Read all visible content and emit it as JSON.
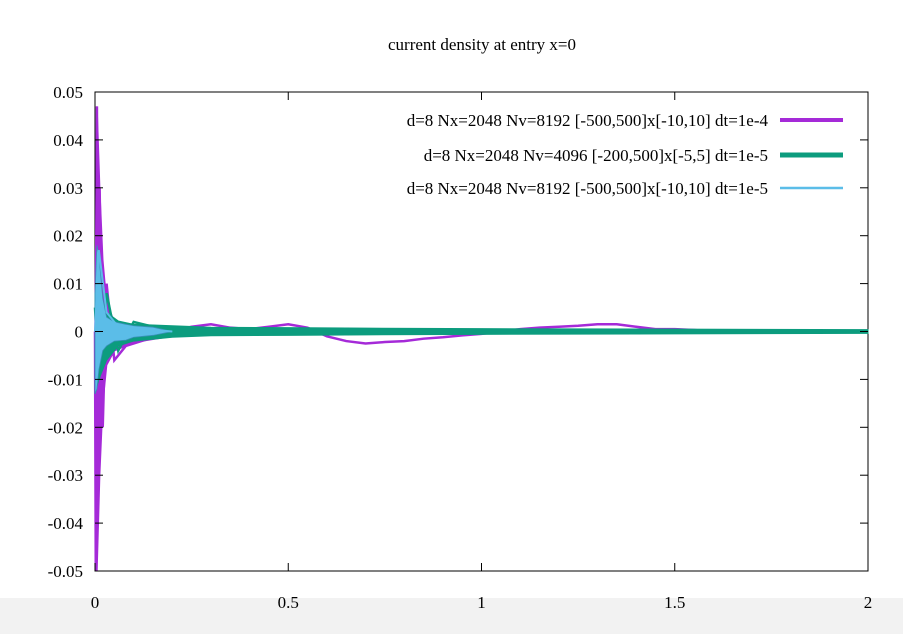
{
  "chart_data": {
    "type": "line",
    "title": "current density at entry x=0",
    "xlabel": "",
    "ylabel": "",
    "xlim": [
      0,
      2
    ],
    "ylim": [
      -0.05,
      0.05
    ],
    "x_ticks": [
      "0",
      "0.5",
      "1",
      "1.5",
      "2"
    ],
    "x_tick_values": [
      0,
      0.5,
      1,
      1.5,
      2
    ],
    "y_ticks": [
      "0.05",
      "0.04",
      "0.03",
      "0.02",
      "0.01",
      "0",
      "-0.01",
      "-0.02",
      "-0.03",
      "-0.04",
      "-0.05"
    ],
    "y_tick_values": [
      0.05,
      0.04,
      0.03,
      0.02,
      0.01,
      0,
      -0.01,
      -0.02,
      -0.03,
      -0.04,
      -0.05
    ],
    "grid": false,
    "legend_position": "top-right",
    "series": [
      {
        "name": "d=8 Nx=2048 Nv=8192 [-500,500]x[-10,10] dt=1e-4",
        "color": "#a52ad8",
        "x": [
          0,
          0.002,
          0.005,
          0.008,
          0.012,
          0.02,
          0.03,
          0.05,
          0.08,
          0.12,
          0.16,
          0.2,
          0.25,
          0.3,
          0.35,
          0.4,
          0.45,
          0.5,
          0.55,
          0.6,
          0.65,
          0.7,
          0.75,
          0.8,
          0.85,
          0.9,
          0.95,
          1.0,
          1.05,
          1.1,
          1.15,
          1.2,
          1.25,
          1.3,
          1.35,
          1.4,
          1.45,
          1.5,
          1.55,
          1.6
        ],
        "y": [
          0,
          -0.05,
          0.047,
          -0.035,
          0.03,
          -0.02,
          0.01,
          -0.006,
          -0.003,
          -0.002,
          -0.001,
          0.0,
          0.001,
          0.0015,
          0.0008,
          0.0005,
          0.001,
          0.0015,
          0.0008,
          -0.001,
          -0.002,
          -0.0025,
          -0.0022,
          -0.002,
          -0.0015,
          -0.0012,
          -0.0008,
          -0.0005,
          0.0,
          0.0005,
          0.0008,
          0.001,
          0.0012,
          0.0015,
          0.0015,
          0.001,
          0.0005,
          0.0005,
          0.0003,
          0.0
        ],
        "envelope": {
          "x": [
            0.0,
            0.005,
            0.012,
            0.02,
            0.03,
            0.05,
            0.08,
            0.12,
            0.16,
            0.2
          ],
          "upper": [
            0.0,
            0.047,
            0.03,
            0.015,
            0.006,
            0.002,
            0.001,
            0.0005,
            0.0002,
            0.0
          ],
          "lower": [
            0.0,
            -0.05,
            -0.03,
            -0.015,
            -0.007,
            -0.004,
            -0.003,
            -0.002,
            -0.0015,
            -0.001
          ]
        }
      },
      {
        "name": "d=8 Nx=2048 Nv=4096 [-200,500]x[-5,5] dt=1e-5",
        "color": "#0c9c7e",
        "x": [
          0,
          0.01,
          0.03,
          0.06,
          0.1,
          0.15,
          0.2,
          0.3,
          0.5,
          0.7,
          1.0,
          1.3,
          1.6,
          2.0
        ],
        "y": [
          0.005,
          -0.01,
          0.008,
          -0.004,
          0.002,
          0.001,
          0.0,
          0.0,
          0.0,
          0.0,
          0.0,
          0.0,
          0.0,
          0.0
        ],
        "band": {
          "x": [
            0.0,
            0.01,
            0.03,
            0.06,
            0.1,
            0.2,
            0.3,
            0.5,
            0.7,
            1.0,
            1.5,
            2.0
          ],
          "upper": [
            0.008,
            0.008,
            0.004,
            0.0022,
            0.0015,
            0.0012,
            0.0009,
            0.0008,
            0.0007,
            0.0006,
            0.0005,
            0.0004
          ],
          "lower": [
            -0.013,
            -0.01,
            -0.006,
            -0.003,
            -0.002,
            -0.0012,
            -0.0009,
            -0.0008,
            -0.0007,
            -0.0006,
            -0.0005,
            -0.0004
          ]
        }
      },
      {
        "name": "d=8 Nx=2048 Nv=8192 [-500,500]x[-10,10] dt=1e-5",
        "color": "#5bbde8",
        "x": [
          0,
          0.01,
          0.03,
          0.06,
          0.1,
          0.15,
          0.2
        ],
        "y": [
          0.0,
          0.017,
          0.004,
          0.001,
          0.0005,
          0.0003,
          0.0
        ],
        "band": {
          "x": [
            0.0,
            0.005,
            0.01,
            0.02,
            0.03,
            0.05,
            0.08,
            0.1,
            0.15,
            0.2
          ],
          "upper": [
            0.008,
            0.018,
            0.016,
            0.007,
            0.003,
            0.002,
            0.0015,
            0.0012,
            0.0009,
            0.0
          ],
          "lower": [
            -0.013,
            -0.012,
            -0.008,
            -0.004,
            -0.003,
            -0.002,
            -0.0018,
            -0.0012,
            -0.0008,
            0.0
          ]
        }
      }
    ]
  }
}
